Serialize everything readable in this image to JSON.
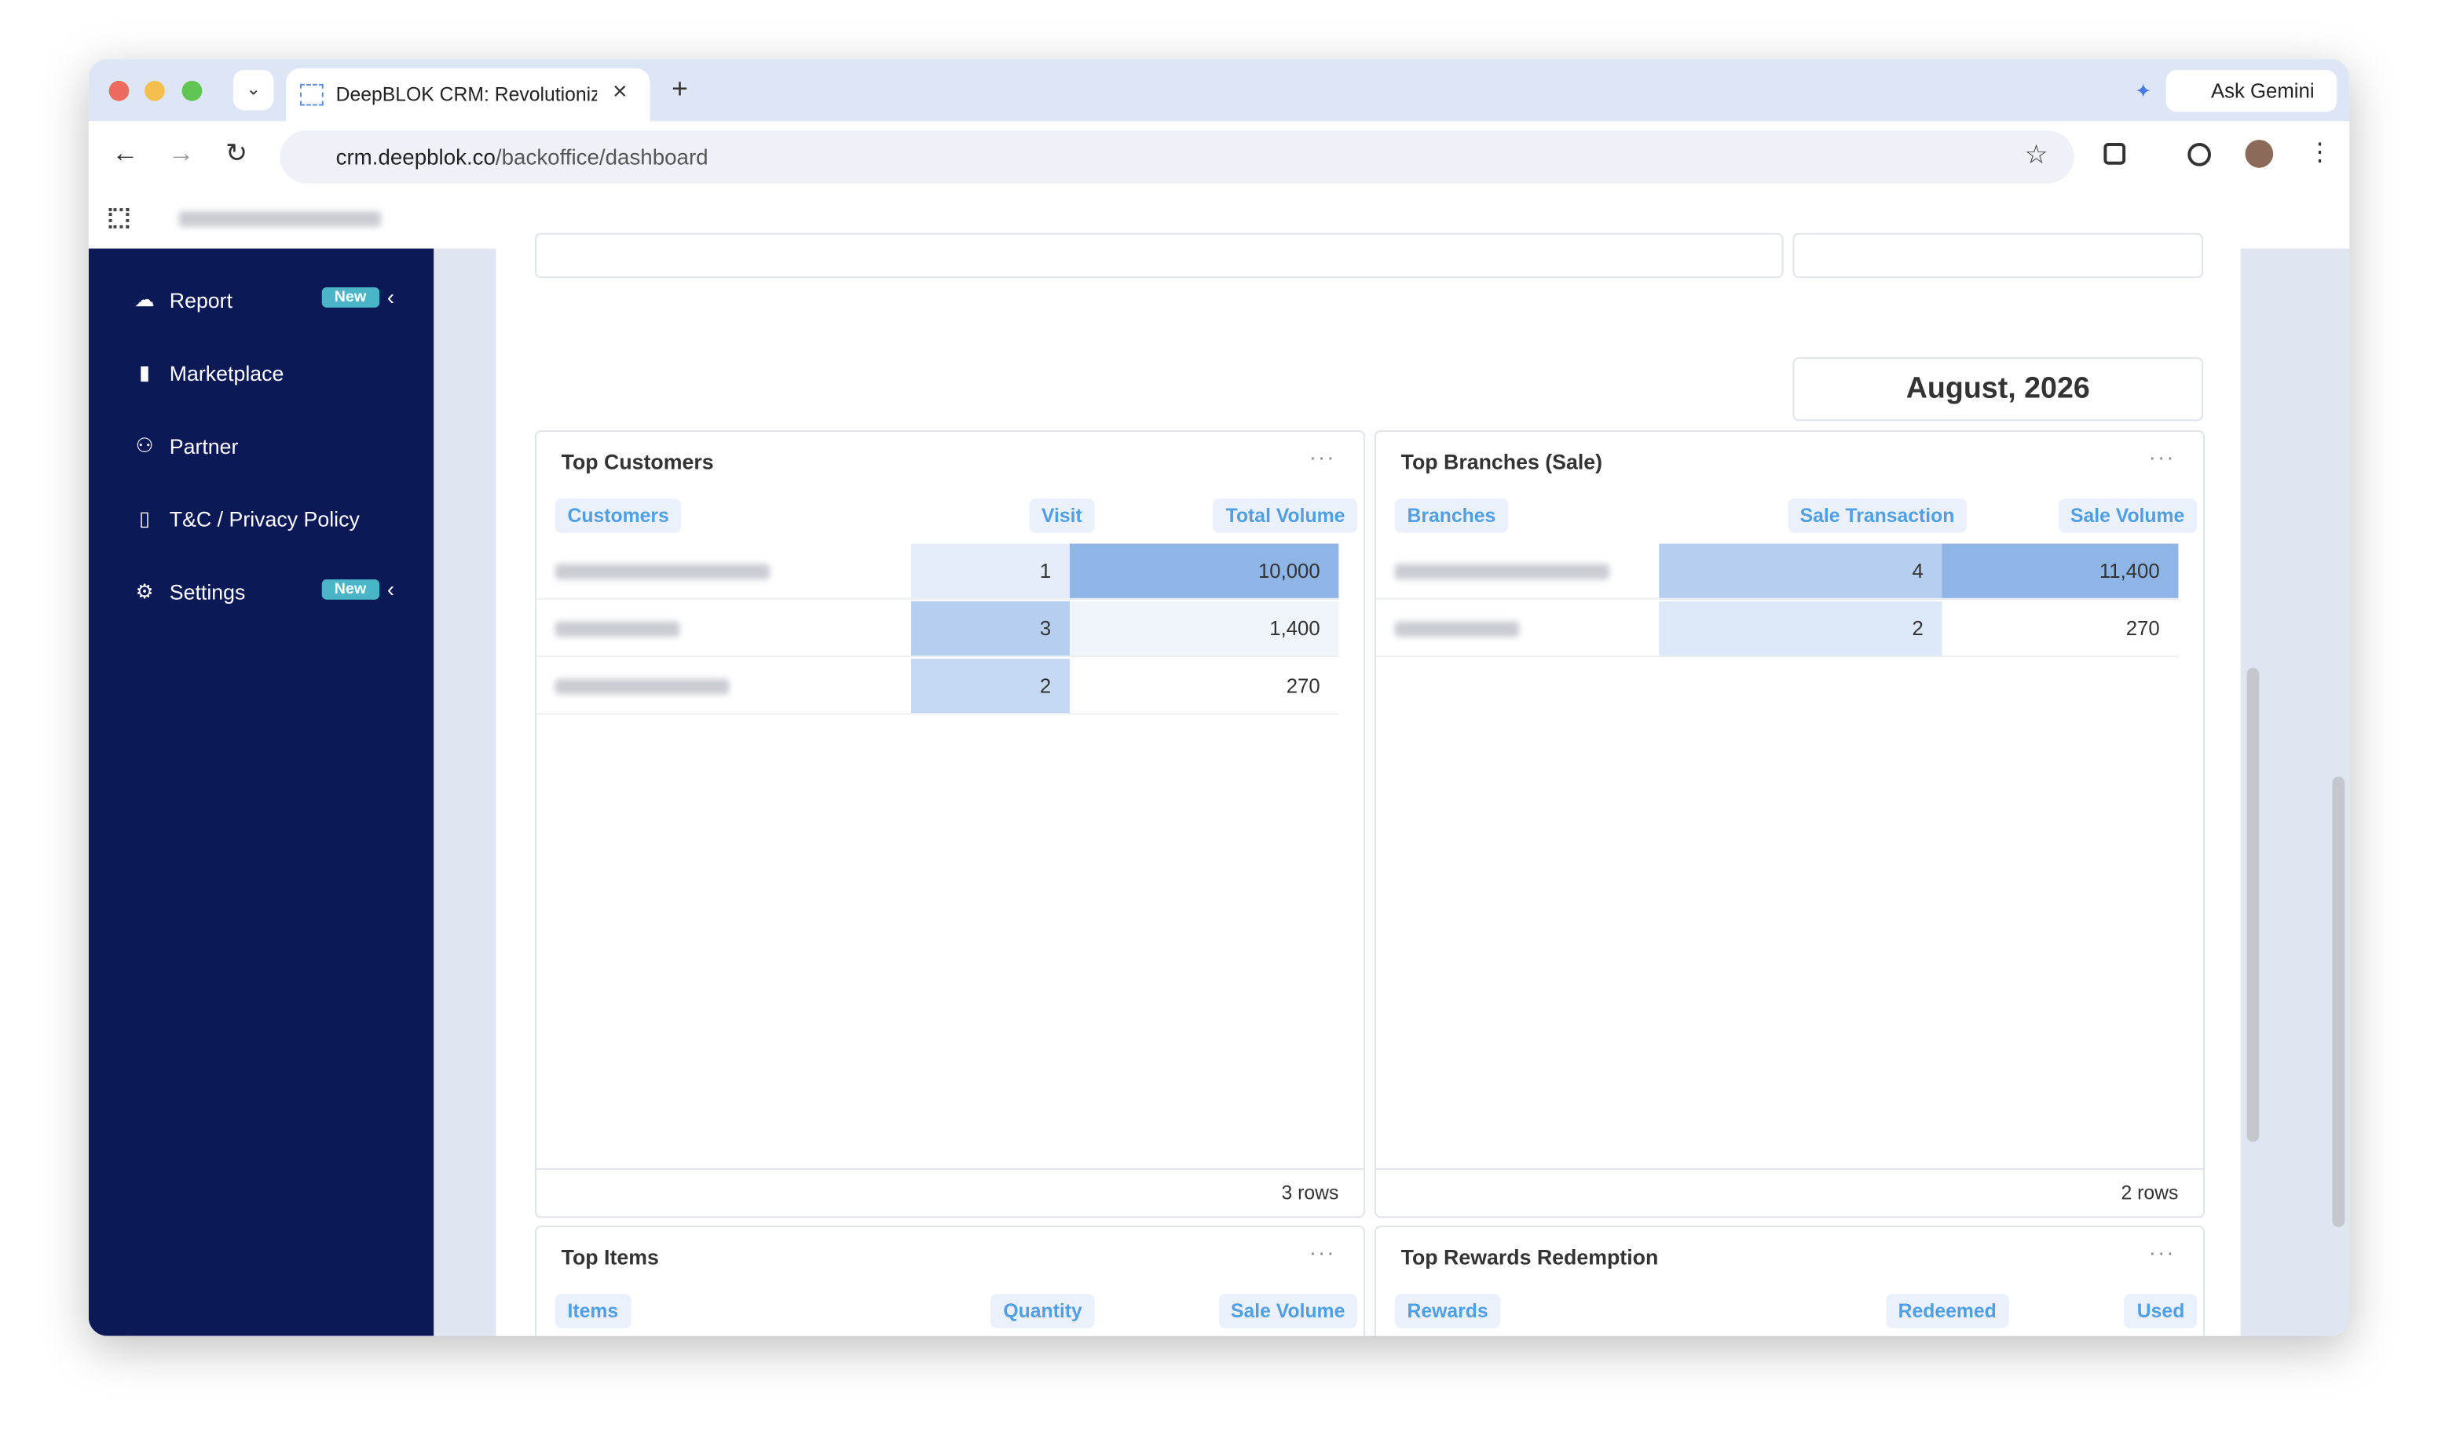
{
  "browser": {
    "tab_title": "DeepBLOK CRM: Revolutioniz",
    "url_host": "crm.deepblok.co",
    "url_path": "/backoffice/dashboard",
    "gemini": "Ask Gemini"
  },
  "sidebar": [
    {
      "label": "Report",
      "badge": "New"
    },
    {
      "label": "Marketplace"
    },
    {
      "label": "Partner"
    },
    {
      "label": "T&C / Privacy Policy"
    },
    {
      "label": "Settings",
      "badge": "New"
    }
  ],
  "date_label": "August, 2026",
  "cards": [
    {
      "title": "Top Customers",
      "columns": [
        "Customers",
        "Visit",
        "Total Volume"
      ],
      "rows": [
        [
          "1",
          "10,000"
        ],
        [
          "3",
          "1,400"
        ],
        [
          "2",
          "270"
        ]
      ],
      "footer": "3 rows"
    },
    {
      "title": "Top Branches (Sale)",
      "columns": [
        "Branches",
        "Sale Transaction",
        "Sale Volume"
      ],
      "rows": [
        [
          "4",
          "11,400"
        ],
        [
          "2",
          "270"
        ]
      ],
      "footer": "2 rows"
    },
    {
      "title": "Top Items",
      "columns": [
        "Items",
        "Quantity",
        "Sale Volume"
      ]
    },
    {
      "title": "Top Rewards Redemption",
      "columns": [
        "Rewards",
        "Redeemed",
        "Used"
      ]
    }
  ]
}
